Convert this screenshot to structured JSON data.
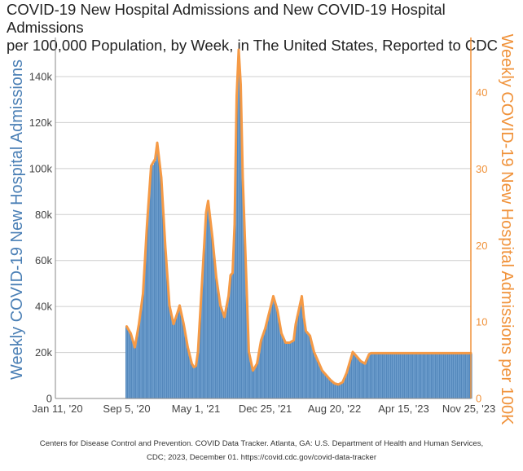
{
  "chart_data": {
    "type": "bar",
    "title_line1": "COVID-19 New Hospital Admissions and New COVID-19 Hospital Admissions",
    "title_line2": "per 100,000 Population, by Week, in The United States, Reported to CDC",
    "ylabel": "Weekly COVID-19 New Hospital Admissions",
    "y2label": "Weekly COVID-19 New Hospital Admissions per 100K",
    "ylim": [
      0,
      157000
    ],
    "y2lim": [
      0,
      47.2
    ],
    "y_ticks": [
      0,
      20000,
      40000,
      60000,
      80000,
      100000,
      120000,
      140000
    ],
    "y_tick_labels": [
      "0",
      "20k",
      "40k",
      "60k",
      "80k",
      "100k",
      "120k",
      "140k"
    ],
    "y2_ticks": [
      0,
      10,
      20,
      30,
      40
    ],
    "y2_tick_labels": [
      "0",
      "10",
      "20",
      "30",
      "40"
    ],
    "x_tick_labels": [
      "Jan 11, '20",
      "Sep 5, '20",
      "May 1, '21",
      "Dec 25, '21",
      "Aug 20, '22",
      "Apr 15, '23",
      "Nov 25, '23"
    ],
    "x_tick_weeks": [
      0,
      34,
      68,
      102,
      136,
      170,
      202
    ],
    "x_range_weeks": [
      -1,
      203
    ],
    "first_data_week": 34,
    "weekly_admissions_anchors": [
      [
        34,
        31000
      ],
      [
        36,
        28000
      ],
      [
        38,
        22000
      ],
      [
        40,
        32000
      ],
      [
        42,
        45000
      ],
      [
        44,
        75000
      ],
      [
        46,
        100000
      ],
      [
        48,
        103000
      ],
      [
        49,
        110000
      ],
      [
        51,
        95000
      ],
      [
        53,
        65000
      ],
      [
        55,
        40000
      ],
      [
        57,
        32000
      ],
      [
        59,
        37000
      ],
      [
        60,
        40000
      ],
      [
        62,
        32000
      ],
      [
        64,
        22000
      ],
      [
        66,
        15000
      ],
      [
        67,
        13500
      ],
      [
        68,
        14000
      ],
      [
        69,
        20000
      ],
      [
        71,
        50000
      ],
      [
        73,
        80000
      ],
      [
        74,
        85000
      ],
      [
        76,
        70000
      ],
      [
        78,
        52000
      ],
      [
        80,
        40000
      ],
      [
        82,
        35000
      ],
      [
        84,
        44000
      ],
      [
        85,
        53000
      ],
      [
        86,
        54000
      ],
      [
        87,
        75000
      ],
      [
        88,
        130000
      ],
      [
        89,
        150000
      ],
      [
        90,
        135000
      ],
      [
        91,
        95000
      ],
      [
        93,
        45000
      ],
      [
        94,
        20000
      ],
      [
        96,
        12000
      ],
      [
        98,
        15000
      ],
      [
        100,
        25000
      ],
      [
        102,
        30000
      ],
      [
        104,
        37000
      ],
      [
        106,
        44000
      ],
      [
        108,
        38000
      ],
      [
        110,
        28000
      ],
      [
        112,
        24000
      ],
      [
        114,
        24000
      ],
      [
        116,
        25000
      ],
      [
        117,
        32000
      ],
      [
        119,
        40000
      ],
      [
        120,
        44000
      ],
      [
        121,
        35000
      ],
      [
        122,
        29000
      ],
      [
        124,
        27000
      ],
      [
        126,
        20000
      ],
      [
        128,
        16000
      ],
      [
        130,
        12000
      ],
      [
        132,
        10000
      ],
      [
        134,
        8000
      ],
      [
        136,
        6500
      ],
      [
        138,
        6000
      ],
      [
        140,
        7000
      ],
      [
        142,
        11000
      ],
      [
        144,
        17000
      ],
      [
        145,
        20000
      ],
      [
        147,
        18000
      ],
      [
        149,
        16000
      ],
      [
        151,
        15000
      ],
      [
        153,
        19000
      ],
      [
        154,
        19500
      ]
    ],
    "per_100k_factor": 0.000304
  },
  "caption": {
    "line1": "Centers for Disease Control and Prevention. COVID Data Tracker. Atlanta, GA: U.S. Department of Health and Human Services,",
    "line2": "CDC; 2023, December 01. https://covid.cdc.gov/covid-data-tracker"
  },
  "colors": {
    "bar_fill": "#6a9bcb",
    "bar_stroke": "#3e76ae",
    "rate_line": "#f59a46",
    "left_axis": "#4a7fb5",
    "right_axis": "#f0923a",
    "grid": "#cfcfcf"
  }
}
